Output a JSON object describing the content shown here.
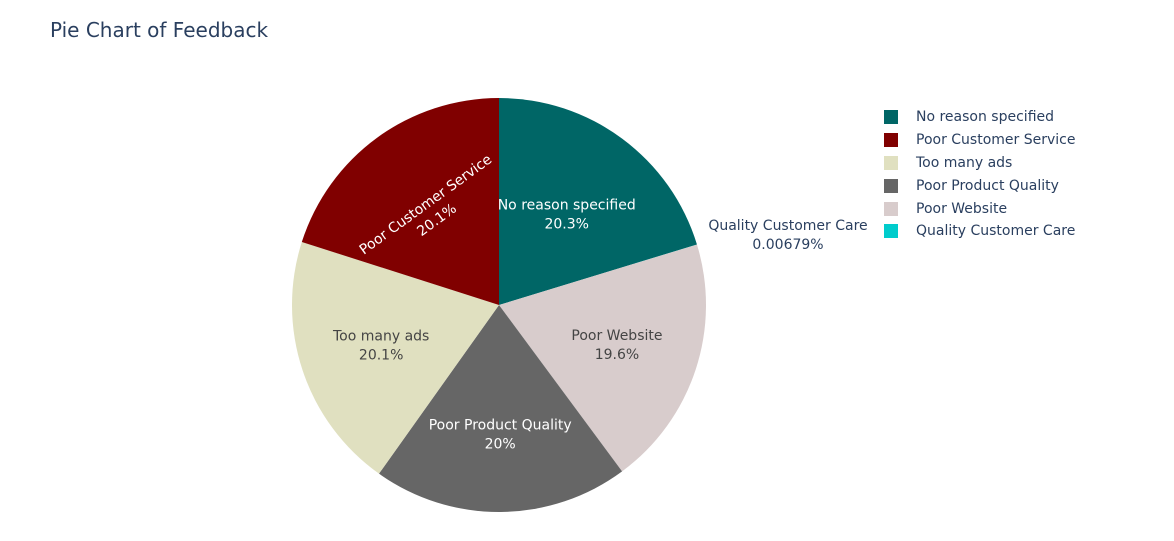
{
  "chart_data": {
    "type": "pie",
    "title": "Pie Chart of Feedback",
    "slices": [
      {
        "label": "No reason specified",
        "percent": 20.3,
        "percent_text": "20.3%",
        "color": "#006666",
        "text_color": "#ffffff"
      },
      {
        "label": "Quality Customer Care",
        "percent": 0.00679,
        "percent_text": "0.00679%",
        "color": "#00cccc",
        "text_color": "#2a3f5f"
      },
      {
        "label": "Poor Website",
        "percent": 19.6,
        "percent_text": "19.6%",
        "color": "#d8cccc",
        "text_color": "#444444"
      },
      {
        "label": "Poor Product Quality",
        "percent": 20.0,
        "percent_text": "20%",
        "color": "#666666",
        "text_color": "#ffffff"
      },
      {
        "label": "Too many ads",
        "percent": 20.1,
        "percent_text": "20.1%",
        "color": "#e0e0c0",
        "text_color": "#444444"
      },
      {
        "label": "Poor Customer Service",
        "percent": 20.1,
        "percent_text": "20.1%",
        "color": "#800000",
        "text_color": "#ffffff"
      }
    ],
    "legend": {
      "placement": "right",
      "order": [
        "No reason specified",
        "Poor Customer Service",
        "Too many ads",
        "Poor Product Quality",
        "Poor Website",
        "Quality Customer Care"
      ]
    }
  }
}
